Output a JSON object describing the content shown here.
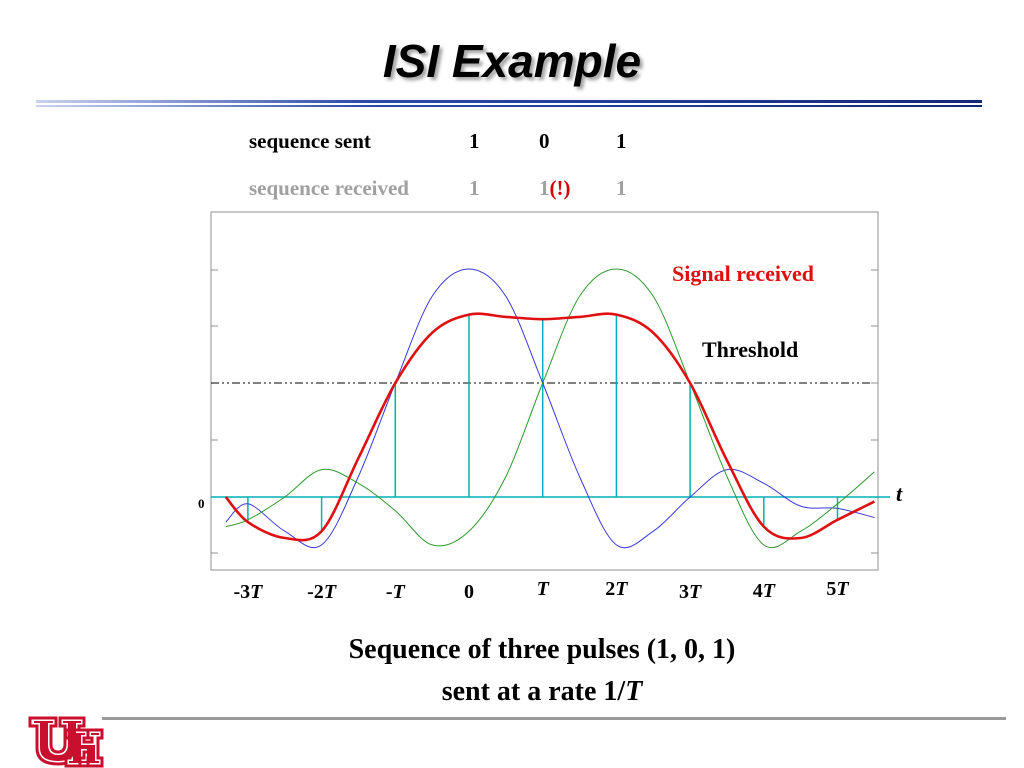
{
  "slide": {
    "title": "ISI Example",
    "sequence_sent": {
      "label": "sequence sent",
      "values": [
        "1",
        "0",
        "1"
      ]
    },
    "sequence_received": {
      "label": "sequence received",
      "values": [
        "1",
        "1",
        "1"
      ],
      "error_mark": "(!)"
    },
    "caption_line1": "Sequence of three pulses (1, 0, 1)",
    "caption_line2_prefix": "sent at a rate 1/",
    "caption_line2_var": "T"
  },
  "colors": {
    "pulse_1": "#3a3adc",
    "pulse_2": "#2e9a2e",
    "received": "#e01010",
    "samples": "#00b0b8",
    "threshold": "#000000",
    "title_rule": "#1f3a8a",
    "logo": "#c8102e"
  },
  "chart_data": {
    "type": "line",
    "x": [
      -3.3,
      -3,
      -2,
      -1,
      0,
      1,
      2,
      3,
      4,
      5,
      5.5
    ],
    "xlim": [
      -3.3,
      5.55
    ],
    "ylim": [
      -0.3,
      1.1
    ],
    "x_tick_labels": [
      {
        "x": -3,
        "num": "-3",
        "var": "T"
      },
      {
        "x": -2,
        "num": "-2",
        "var": "T"
      },
      {
        "x": -1,
        "num": "-",
        "var": "T"
      },
      {
        "x": 0,
        "num": "0",
        "var": ""
      },
      {
        "x": 1,
        "num": "",
        "var": "T"
      },
      {
        "x": 2,
        "num": "2",
        "var": "T"
      },
      {
        "x": 3,
        "num": "3",
        "var": "T"
      },
      {
        "x": 4,
        "num": "4",
        "var": "T"
      },
      {
        "x": 5,
        "num": "5",
        "var": "T"
      }
    ],
    "y_tick_label": "0",
    "axis_label": "t",
    "threshold": {
      "label": "Threshold",
      "value": 0.5
    },
    "received_label": "Signal received",
    "series": [
      {
        "x": [
          -3.3,
          -3.0,
          -2.5,
          -2.0,
          -1.5,
          -1.0,
          -0.5,
          0.0,
          0.5,
          1.0,
          1.5,
          2.0,
          2.5,
          3.0,
          3.5,
          4.0,
          4.5,
          5.0,
          5.5
        ],
        "values": [
          -0.11,
          -0.03,
          -0.15,
          -0.21,
          0.09,
          0.5,
          0.88,
          1.0,
          0.88,
          0.5,
          0.09,
          -0.21,
          -0.15,
          0.0,
          0.12,
          0.06,
          -0.04,
          -0.05,
          -0.09
        ]
      },
      {
        "x": [
          -3.3,
          -3.0,
          -2.5,
          -2.0,
          -1.5,
          -1.0,
          -0.5,
          0.0,
          0.5,
          1.0,
          1.5,
          2.0,
          2.5,
          3.0,
          3.5,
          4.0,
          4.5,
          5.0,
          5.5
        ],
        "values": [
          -0.13,
          -0.1,
          0.0,
          0.12,
          0.06,
          -0.06,
          -0.21,
          -0.15,
          0.09,
          0.5,
          0.88,
          1.0,
          0.88,
          0.5,
          0.09,
          -0.21,
          -0.15,
          -0.03,
          0.11
        ]
      },
      {
        "x": [
          -3.3,
          -3.0,
          -2.5,
          -2.0,
          -1.5,
          -1.0,
          -0.5,
          0.0,
          0.5,
          1.0,
          1.5,
          2.0,
          2.5,
          3.0,
          3.5,
          4.0,
          4.5,
          5.0,
          5.5
        ],
        "values": [
          0.0,
          -0.11,
          -0.18,
          -0.15,
          0.17,
          0.5,
          0.72,
          0.8,
          0.79,
          0.78,
          0.79,
          0.8,
          0.72,
          0.5,
          0.16,
          -0.13,
          -0.18,
          -0.1,
          -0.02
        ]
      }
    ],
    "samples": [
      {
        "x": -3,
        "value": -0.11
      },
      {
        "x": -2,
        "value": -0.15
      },
      {
        "x": -1,
        "value": 0.5
      },
      {
        "x": 0,
        "value": 0.8
      },
      {
        "x": 1,
        "value": 0.78
      },
      {
        "x": 2,
        "value": 0.8
      },
      {
        "x": 3,
        "value": 0.5
      },
      {
        "x": 4,
        "value": -0.13
      },
      {
        "x": 5,
        "value": -0.1
      }
    ]
  }
}
